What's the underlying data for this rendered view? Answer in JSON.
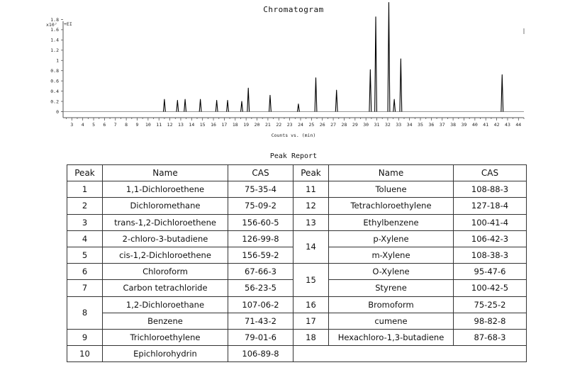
{
  "chart_data": {
    "type": "line",
    "title": "Chromatogram",
    "xlabel": "Counts vs. (min)",
    "y_multiplier": "x10⁷",
    "trace_label": "+EI",
    "xlim": [
      2.2,
      44.5
    ],
    "x_ticks": [
      3,
      4,
      5,
      6,
      7,
      8,
      9,
      10,
      11,
      12,
      13,
      14,
      15,
      16,
      17,
      18,
      19,
      20,
      21,
      22,
      23,
      24,
      25,
      26,
      27,
      28,
      29,
      30,
      31,
      32,
      33,
      34,
      35,
      36,
      37,
      38,
      39,
      40,
      41,
      42,
      43,
      44
    ],
    "ylim": [
      0,
      2.0
    ],
    "y_ticks": [
      0,
      0.2,
      0.4,
      0.6,
      0.8,
      1,
      1.2,
      1.4,
      1.6,
      1.8
    ],
    "y_tick_labels": [
      "0",
      "0.2",
      "0.4",
      "0.6",
      "0.8",
      "1",
      "1.2",
      "1.4",
      "1.6",
      "1.8"
    ],
    "peaks": [
      {
        "x": 11.5,
        "y": 0.24
      },
      {
        "x": 12.7,
        "y": 0.22
      },
      {
        "x": 13.4,
        "y": 0.24
      },
      {
        "x": 14.8,
        "y": 0.24
      },
      {
        "x": 16.3,
        "y": 0.22
      },
      {
        "x": 17.3,
        "y": 0.22
      },
      {
        "x": 18.6,
        "y": 0.2
      },
      {
        "x": 19.2,
        "y": 0.46
      },
      {
        "x": 21.2,
        "y": 0.32
      },
      {
        "x": 23.8,
        "y": 0.15
      },
      {
        "x": 25.4,
        "y": 0.66
      },
      {
        "x": 27.3,
        "y": 0.42
      },
      {
        "x": 30.4,
        "y": 0.82
      },
      {
        "x": 30.9,
        "y": 1.85
      },
      {
        "x": 32.1,
        "y": 2.13
      },
      {
        "x": 32.6,
        "y": 0.24
      },
      {
        "x": 33.2,
        "y": 1.03
      },
      {
        "x": 42.5,
        "y": 0.72
      }
    ]
  },
  "report": {
    "title": "Peak Report",
    "headers": [
      "Peak",
      "Name",
      "CAS",
      "Peak",
      "Name",
      "CAS"
    ],
    "left": [
      {
        "peak": "1",
        "rows": [
          {
            "name": "1,1-Dichloroethene",
            "cas": "75-35-4"
          }
        ]
      },
      {
        "peak": "2",
        "rows": [
          {
            "name": "Dichloromethane",
            "cas": "75-09-2"
          }
        ]
      },
      {
        "peak": "3",
        "rows": [
          {
            "name": "trans-1,2-Dichloroethene",
            "cas": "156-60-5"
          }
        ]
      },
      {
        "peak": "4",
        "rows": [
          {
            "name": "2-chloro-3-butadiene",
            "cas": "126-99-8"
          }
        ]
      },
      {
        "peak": "5",
        "rows": [
          {
            "name": "cis-1,2-Dichloroethene",
            "cas": "156-59-2"
          }
        ]
      },
      {
        "peak": "6",
        "rows": [
          {
            "name": "Chloroform",
            "cas": "67-66-3"
          }
        ]
      },
      {
        "peak": "7",
        "rows": [
          {
            "name": "Carbon tetrachloride",
            "cas": "56-23-5"
          }
        ]
      },
      {
        "peak": "8",
        "rows": [
          {
            "name": "1,2-Dichloroethane",
            "cas": "107-06-2"
          },
          {
            "name": "Benzene",
            "cas": "71-43-2"
          }
        ]
      },
      {
        "peak": "9",
        "rows": [
          {
            "name": "Trichloroethylene",
            "cas": "79-01-6"
          }
        ]
      },
      {
        "peak": "10",
        "rows": [
          {
            "name": "Epichlorohydrin",
            "cas": "106-89-8"
          }
        ]
      }
    ],
    "right": [
      {
        "peak": "11",
        "rows": [
          {
            "name": "Toluene",
            "cas": "108-88-3"
          }
        ]
      },
      {
        "peak": "12",
        "rows": [
          {
            "name": "Tetrachloroethylene",
            "cas": "127-18-4"
          }
        ]
      },
      {
        "peak": "13",
        "rows": [
          {
            "name": "Ethylbenzene",
            "cas": "100-41-4"
          }
        ]
      },
      {
        "peak": "14",
        "rows": [
          {
            "name": "p-Xylene",
            "cas": "106-42-3"
          },
          {
            "name": "m-Xylene",
            "cas": "108-38-3"
          }
        ]
      },
      {
        "peak": "15",
        "rows": [
          {
            "name": "O-Xylene",
            "cas": "95-47-6"
          },
          {
            "name": "Styrene",
            "cas": "100-42-5"
          }
        ]
      },
      {
        "peak": "16",
        "rows": [
          {
            "name": "Bromoform",
            "cas": "75-25-2"
          }
        ]
      },
      {
        "peak": "17",
        "rows": [
          {
            "name": "cumene",
            "cas": "98-82-8"
          }
        ]
      },
      {
        "peak": "18",
        "rows": [
          {
            "name": "Hexachloro-1,3-butadiene",
            "cas": "87-68-3"
          }
        ]
      }
    ]
  }
}
